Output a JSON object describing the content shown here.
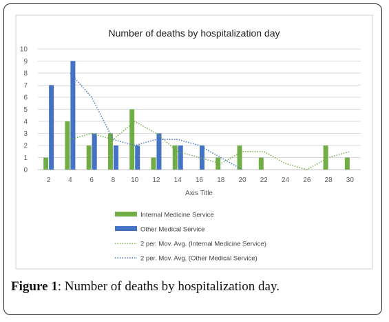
{
  "caption": {
    "label": "Figure 1",
    "text": ": Number of deaths by hospitalization day."
  },
  "chart_data": {
    "type": "bar",
    "title": "Number of deaths by hospitalization day",
    "xlabel": "Axis Title",
    "ylabel": "",
    "ylim": [
      0,
      10
    ],
    "yticks": [
      "0",
      "1",
      "2",
      "3",
      "4",
      "5",
      "6",
      "7",
      "8",
      "9",
      "10"
    ],
    "categories": [
      "2",
      "4",
      "6",
      "8",
      "10",
      "12",
      "14",
      "16",
      "18",
      "20",
      "22",
      "24",
      "26",
      "28",
      "30"
    ],
    "grid": true,
    "legend_position": "bottom",
    "series": [
      {
        "name": "Internal Medicine Service",
        "kind": "bar",
        "color": "#70ad47",
        "values": [
          1,
          4,
          2,
          3,
          5,
          1,
          2,
          0,
          1,
          2,
          1,
          0,
          0,
          2,
          1
        ]
      },
      {
        "name": "Other Medical Service",
        "kind": "bar",
        "color": "#4472c4",
        "values": [
          7,
          9,
          3,
          2,
          2,
          3,
          2,
          2,
          0,
          0,
          0,
          0,
          0,
          0,
          0
        ]
      },
      {
        "name": "2 per. Mov. Avg. (Internal Medicine Service)",
        "kind": "moving-average",
        "color": "#70ad47",
        "values": [
          null,
          2.5,
          3,
          2.5,
          4,
          3,
          1.5,
          1,
          0.5,
          1.5,
          1.5,
          0.5,
          0,
          1,
          1.5
        ]
      },
      {
        "name": "2 per. Mov. Avg. (Other Medical Service)",
        "kind": "moving-average",
        "color": "#4472c4",
        "values": [
          null,
          8,
          6,
          2.5,
          2,
          2.5,
          2.5,
          2,
          1,
          0,
          null,
          null,
          null,
          null,
          null
        ]
      }
    ]
  }
}
